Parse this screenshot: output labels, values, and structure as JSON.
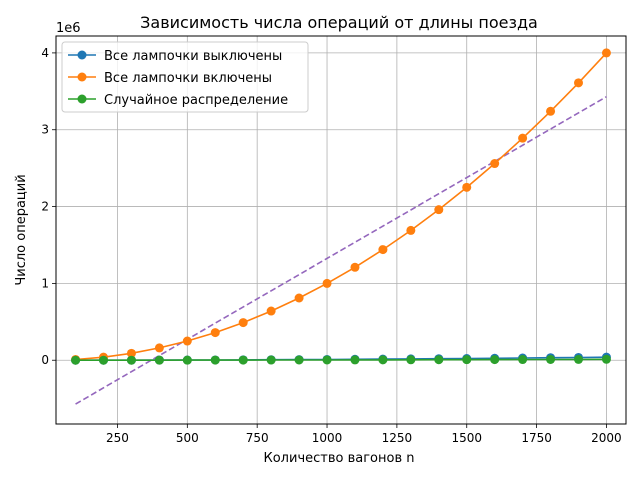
{
  "chart_data": {
    "type": "line",
    "title": "Зависимость числа операций от длины поезда",
    "xlabel": "Количество вагонов n",
    "ylabel": "Число операций",
    "y_offset_label": "1e6",
    "xlim": [
      30,
      2070
    ],
    "ylim": [
      -0.83,
      4.22
    ],
    "y_scale": 1000000,
    "xticks": [
      250,
      500,
      750,
      1000,
      1250,
      1500,
      1750,
      2000
    ],
    "yticks": [
      0,
      1,
      2,
      3,
      4
    ],
    "grid": true,
    "legend_position": "upper-left",
    "x": [
      100,
      200,
      300,
      400,
      500,
      600,
      700,
      800,
      900,
      1000,
      1100,
      1200,
      1300,
      1400,
      1500,
      1600,
      1700,
      1800,
      1900,
      2000
    ],
    "series": [
      {
        "name": "Все лампочки выключены",
        "color": "#1f77b4",
        "values": [
          0.0001,
          0.0004,
          0.0009,
          0.0016,
          0.0025,
          0.0036,
          0.0049,
          0.0064,
          0.0081,
          0.01,
          0.0121,
          0.0144,
          0.0169,
          0.0196,
          0.0225,
          0.0256,
          0.0289,
          0.0324,
          0.0361,
          0.04
        ]
      },
      {
        "name": "Все лампочки включены",
        "color": "#ff7f0e",
        "values": [
          0.01,
          0.04,
          0.09,
          0.16,
          0.25,
          0.36,
          0.49,
          0.64,
          0.81,
          1.0,
          1.21,
          1.44,
          1.69,
          1.96,
          2.25,
          2.56,
          2.89,
          3.24,
          3.61,
          4.0
        ]
      },
      {
        "name": "Случайное распределение",
        "color": "#2ca02c",
        "values": [
          0.0001,
          0.0003,
          0.0005,
          0.0008,
          0.0011,
          0.0015,
          0.002,
          0.0025,
          0.003,
          0.0036,
          0.0042,
          0.0049,
          0.0056,
          0.0064,
          0.0072,
          0.0081,
          0.009,
          0.01,
          0.011,
          0.012
        ]
      }
    ],
    "trend_line": {
      "style": "dashed",
      "color": "#9467bd",
      "x": [
        100,
        2000
      ],
      "values": [
        -0.57,
        3.43
      ]
    }
  }
}
